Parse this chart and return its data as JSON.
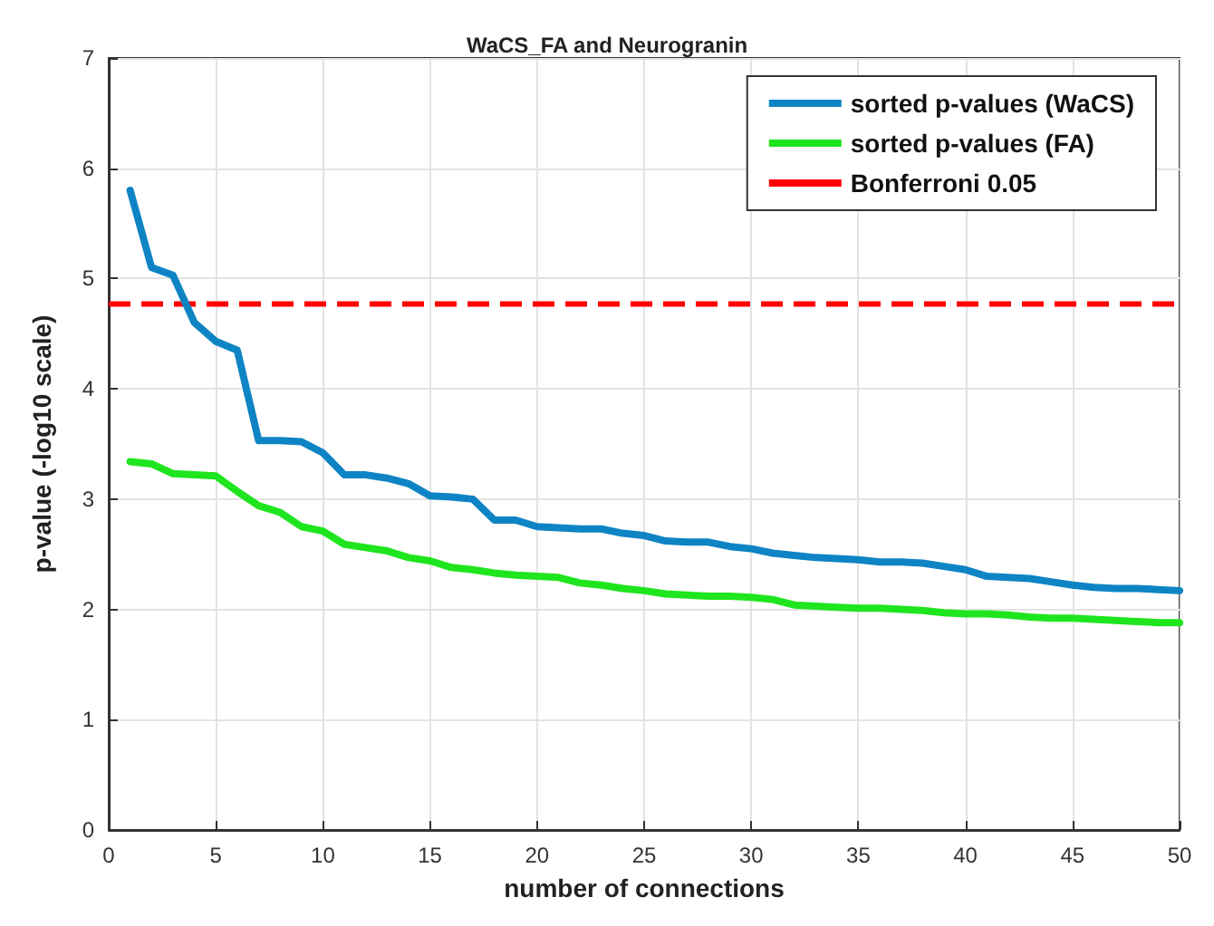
{
  "chart_data": {
    "type": "line",
    "title": "WaCS_FA and Neurogranin",
    "xlabel": "number of connections",
    "ylabel": "p-value (-log10 scale)",
    "x": [
      1,
      2,
      3,
      4,
      5,
      6,
      7,
      8,
      9,
      10,
      11,
      12,
      13,
      14,
      15,
      16,
      17,
      18,
      19,
      20,
      21,
      22,
      23,
      24,
      25,
      26,
      27,
      28,
      29,
      30,
      31,
      32,
      33,
      34,
      35,
      36,
      37,
      38,
      39,
      40,
      41,
      42,
      43,
      44,
      45,
      46,
      47,
      48,
      49,
      50
    ],
    "series": [
      {
        "name": "sorted p-values (WaCS)",
        "color": "#0e84c4",
        "values": [
          5.8,
          5.1,
          5.03,
          4.6,
          4.43,
          4.35,
          3.53,
          3.53,
          3.52,
          3.42,
          3.22,
          3.22,
          3.19,
          3.14,
          3.03,
          3.02,
          3.0,
          2.81,
          2.81,
          2.75,
          2.74,
          2.73,
          2.73,
          2.69,
          2.67,
          2.62,
          2.61,
          2.61,
          2.57,
          2.55,
          2.51,
          2.49,
          2.47,
          2.46,
          2.45,
          2.43,
          2.43,
          2.42,
          2.39,
          2.36,
          2.3,
          2.29,
          2.28,
          2.25,
          2.22,
          2.2,
          2.19,
          2.19,
          2.18,
          2.17
        ]
      },
      {
        "name": "sorted p-values (FA)",
        "color": "#1ee51e",
        "values": [
          3.34,
          3.32,
          3.23,
          3.22,
          3.21,
          3.07,
          2.94,
          2.88,
          2.75,
          2.71,
          2.59,
          2.56,
          2.53,
          2.47,
          2.44,
          2.38,
          2.36,
          2.33,
          2.31,
          2.3,
          2.29,
          2.24,
          2.22,
          2.19,
          2.17,
          2.14,
          2.13,
          2.12,
          2.12,
          2.11,
          2.09,
          2.04,
          2.03,
          2.02,
          2.01,
          2.01,
          2.0,
          1.99,
          1.97,
          1.96,
          1.96,
          1.95,
          1.93,
          1.92,
          1.92,
          1.91,
          1.9,
          1.89,
          1.88,
          1.88
        ]
      }
    ],
    "ref_lines": [
      {
        "axis": "y",
        "value": 4.77,
        "label": "Bonferroni 0.05",
        "color": "#ff0000",
        "line_style": "dashed"
      }
    ],
    "xlim": [
      0,
      50
    ],
    "xticks": [
      0,
      5,
      10,
      15,
      20,
      25,
      30,
      35,
      40,
      45,
      50
    ],
    "ylim": [
      0,
      7
    ],
    "yticks": [
      0,
      1,
      2,
      3,
      4,
      5,
      6,
      7
    ],
    "grid": true,
    "legend": "top right",
    "marker": "none",
    "line_style": "solid"
  }
}
